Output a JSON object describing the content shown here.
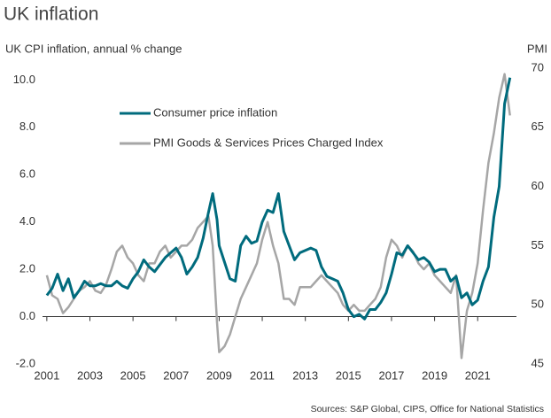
{
  "chart_data": {
    "type": "line",
    "title": "UK inflation",
    "y_label": "UK CPI inflation, annual % change",
    "y2_label": "PMI",
    "source": "Sources: S&P Global, CIPS, Office for National Statistics",
    "x": [
      2001.0,
      2001.25,
      2001.5,
      2001.75,
      2002.0,
      2002.25,
      2002.5,
      2002.75,
      2003.0,
      2003.25,
      2003.5,
      2003.75,
      2004.0,
      2004.25,
      2004.5,
      2004.75,
      2005.0,
      2005.25,
      2005.5,
      2005.75,
      2006.0,
      2006.25,
      2006.5,
      2006.75,
      2007.0,
      2007.25,
      2007.5,
      2007.75,
      2008.0,
      2008.25,
      2008.5,
      2008.7,
      2008.9,
      2009.0,
      2009.25,
      2009.5,
      2009.75,
      2010.0,
      2010.25,
      2010.5,
      2010.75,
      2011.0,
      2011.25,
      2011.5,
      2011.75,
      2012.0,
      2012.25,
      2012.5,
      2012.75,
      2013.0,
      2013.25,
      2013.5,
      2013.75,
      2014.0,
      2014.25,
      2014.5,
      2014.75,
      2015.0,
      2015.25,
      2015.5,
      2015.75,
      2016.0,
      2016.25,
      2016.5,
      2016.75,
      2017.0,
      2017.25,
      2017.5,
      2017.75,
      2018.0,
      2018.25,
      2018.5,
      2018.75,
      2019.0,
      2019.25,
      2019.5,
      2019.75,
      2020.0,
      2020.25,
      2020.5,
      2020.75,
      2021.0,
      2021.25,
      2021.5,
      2021.75,
      2022.0,
      2022.25,
      2022.5
    ],
    "series": [
      {
        "name": "Consumer price inflation",
        "color": "#006b7d",
        "axis": "y",
        "values": [
          0.9,
          1.2,
          1.8,
          1.1,
          1.6,
          0.8,
          1.1,
          1.5,
          1.3,
          1.3,
          1.4,
          1.3,
          1.3,
          1.5,
          1.3,
          1.2,
          1.6,
          1.9,
          2.4,
          2.1,
          1.9,
          2.2,
          2.5,
          2.7,
          2.9,
          2.5,
          1.8,
          2.1,
          2.5,
          3.3,
          4.4,
          5.2,
          4.1,
          3.0,
          2.3,
          1.6,
          1.5,
          3.0,
          3.4,
          3.1,
          3.2,
          4.0,
          4.5,
          4.4,
          5.2,
          3.6,
          3.0,
          2.4,
          2.7,
          2.8,
          2.9,
          2.8,
          2.1,
          1.7,
          1.6,
          1.5,
          1.0,
          0.3,
          0.0,
          0.1,
          -0.1,
          0.3,
          0.3,
          0.6,
          1.0,
          1.8,
          2.7,
          2.6,
          3.0,
          2.7,
          2.4,
          2.5,
          2.3,
          1.9,
          2.0,
          2.0,
          1.5,
          1.7,
          0.8,
          1.0,
          0.5,
          0.7,
          1.5,
          2.1,
          4.2,
          5.5,
          9.0,
          10.1
        ]
      },
      {
        "name": "PMI Goods & Services Prices Charged Index",
        "color": "#a6a6a6",
        "axis": "y2",
        "values": [
          52.5,
          50.8,
          50.5,
          49.3,
          49.8,
          50.5,
          51.2,
          51.5,
          52.0,
          51.2,
          51.0,
          51.7,
          53.0,
          54.5,
          55.0,
          54.0,
          53.5,
          52.5,
          52.0,
          53.5,
          53.5,
          54.5,
          55.0,
          54.0,
          54.5,
          55.0,
          55.0,
          55.5,
          56.5,
          57.0,
          57.5,
          55.0,
          48.5,
          46.0,
          46.5,
          47.5,
          49.0,
          50.5,
          51.5,
          52.5,
          53.5,
          55.5,
          57.0,
          55.0,
          53.5,
          50.5,
          50.5,
          50.0,
          51.5,
          51.5,
          51.5,
          52.0,
          52.5,
          52.0,
          51.5,
          51.0,
          50.0,
          49.5,
          50.0,
          49.5,
          49.5,
          50.0,
          50.5,
          51.5,
          54.0,
          55.5,
          55.0,
          54.0,
          55.0,
          54.5,
          53.5,
          53.0,
          53.5,
          52.5,
          52.0,
          51.5,
          51.0,
          52.5,
          45.5,
          49.5,
          51.0,
          53.5,
          58.0,
          62.0,
          64.5,
          67.5,
          69.5,
          66.0
        ]
      }
    ],
    "xlim": [
      2000.8,
      2022.8
    ],
    "xticks": [
      2001,
      2003,
      2005,
      2007,
      2009,
      2011,
      2013,
      2015,
      2017,
      2019,
      2021
    ],
    "ylim": [
      -2,
      10.5
    ],
    "yticks": [
      {
        "value": -2,
        "label": "-2.0"
      },
      {
        "value": 0,
        "label": "0.0"
      },
      {
        "value": 2,
        "label": "2.0"
      },
      {
        "value": 4,
        "label": "4.0"
      },
      {
        "value": 6,
        "label": "6.0"
      },
      {
        "value": 8,
        "label": "8.0"
      },
      {
        "value": 10,
        "label": "10.0"
      }
    ],
    "y2lim": [
      45,
      70
    ],
    "y2ticks": [
      45,
      50,
      55,
      60,
      65,
      70
    ]
  }
}
